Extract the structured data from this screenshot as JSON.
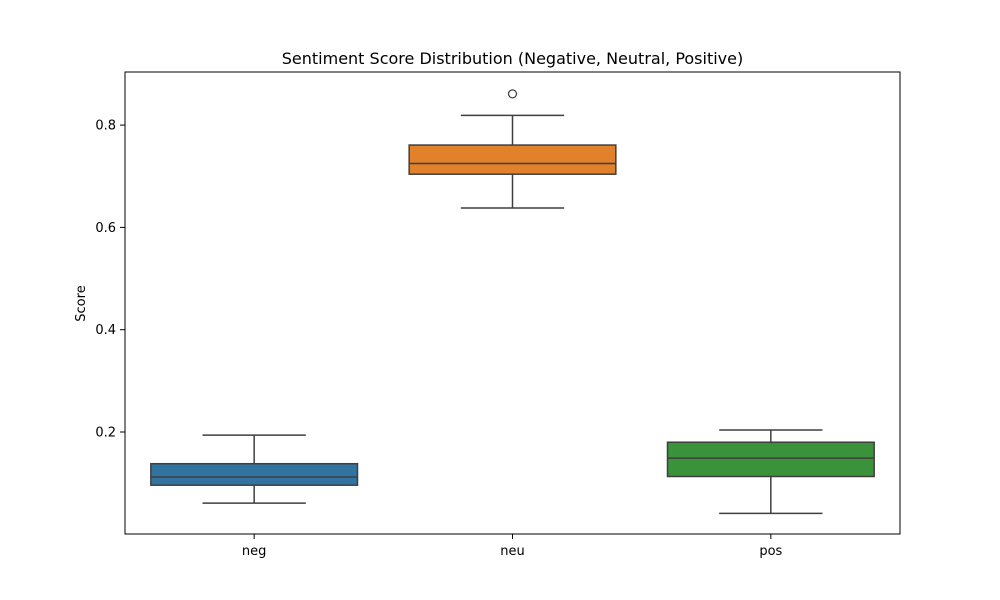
{
  "chart_data": {
    "type": "box",
    "title": "Sentiment Score Distribution (Negative, Neutral, Positive)",
    "xlabel": "",
    "ylabel": "Score",
    "ylim": [
      0.0,
      0.9
    ],
    "yticks": [
      0.2,
      0.4,
      0.6,
      0.8
    ],
    "ytick_labels": [
      "0.2",
      "0.4",
      "0.6",
      "0.8"
    ],
    "categories": [
      "neg",
      "neu",
      "pos"
    ],
    "boxes": [
      {
        "category": "neg",
        "color": "#3274a1",
        "whisker_low": 0.061,
        "q1": 0.096,
        "median": 0.112,
        "q3": 0.138,
        "whisker_high": 0.194,
        "outliers": []
      },
      {
        "category": "neu",
        "color": "#e1812c",
        "whisker_low": 0.638,
        "q1": 0.704,
        "median": 0.725,
        "q3": 0.761,
        "whisker_high": 0.819,
        "outliers": [
          0.861
        ]
      },
      {
        "category": "pos",
        "color": "#3a923a",
        "whisker_low": 0.041,
        "q1": 0.113,
        "median": 0.149,
        "q3": 0.18,
        "whisker_high": 0.204,
        "outliers": []
      }
    ],
    "grid": false,
    "legend": "none"
  }
}
